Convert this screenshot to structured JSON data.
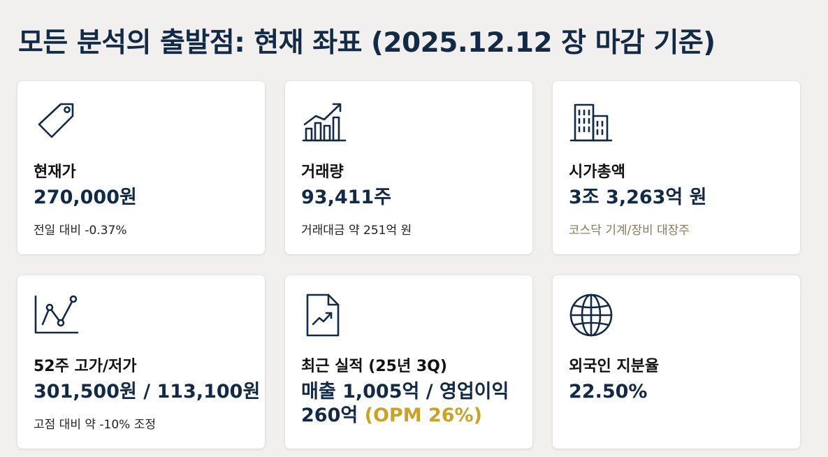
{
  "title": "모든 분석의 출발점: 현재 좌표 (2025.12.12 장 마감 기준)",
  "colors": {
    "navy": "#132a46",
    "gold_accent": "#c9a227",
    "muted_gold": "#8c7a56",
    "background": "#f1f0ee"
  },
  "cards": [
    {
      "icon": "price-tag-icon",
      "label": "현재가",
      "value": "270,000원",
      "sub": "전일 대비 -0.37%"
    },
    {
      "icon": "volume-bar-chart-icon",
      "label": "거래량",
      "value": "93,411주",
      "sub": "거래대금 약 251억 원"
    },
    {
      "icon": "building-icon",
      "label": "시가총액",
      "value": "3조 3,263억 원",
      "sub": "코스닥 기계/장비 대장주"
    },
    {
      "icon": "line-chart-icon",
      "label": "52주 고가/저가",
      "value": "301,500원 / 113,100원",
      "sub": "고점 대비 약 -10% 조정"
    },
    {
      "icon": "report-document-icon",
      "label": "최근 실적 (25년 3Q)",
      "value": "매출 1,005억 / 영업이익 260억",
      "value_main": "매출 1,005억 / 영업이익 260억 ",
      "value_accent": "(OPM 26%)"
    },
    {
      "icon": "globe-icon",
      "label": "외국인 지분율",
      "value": "22.50%"
    }
  ]
}
